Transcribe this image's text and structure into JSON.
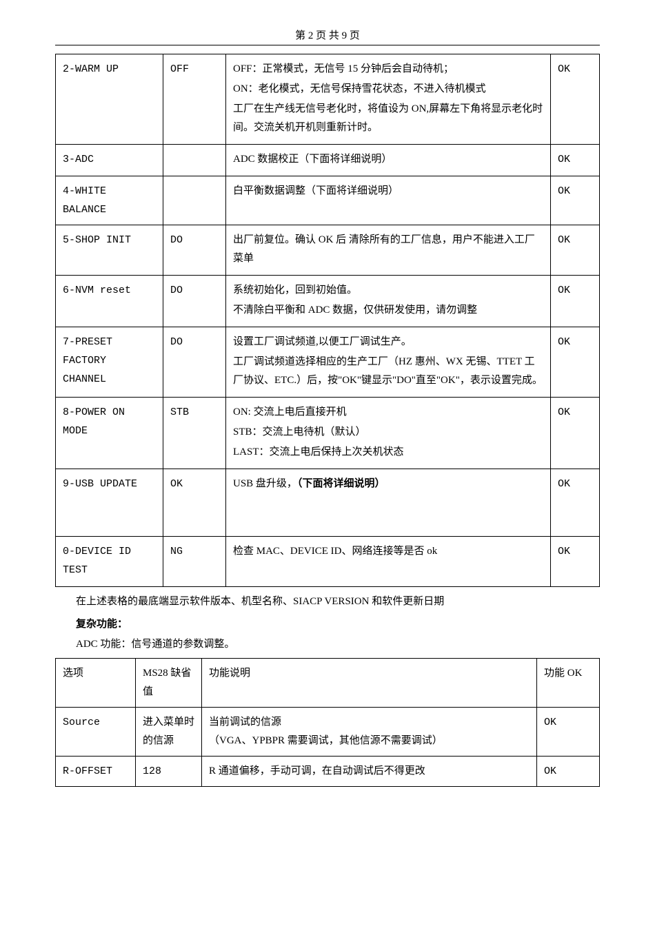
{
  "header": {
    "page_label": "第 2 页 共 9 页"
  },
  "table1": {
    "rows": [
      {
        "name": "2-WARM UP",
        "val": "OFF",
        "desc": [
          "OFF：正常模式，无信号 15 分钟后会自动待机；",
          "ON：老化模式，无信号保持雪花状态，不进入待机模式",
          "工厂在生产线无信号老化时，将值设为 ON,屏幕左下角将显示老化时间。交流关机开机则重新计时。"
        ],
        "ok": "OK"
      },
      {
        "name": "3-ADC",
        "val": "",
        "desc": [
          "ADC 数据校正（下面将详细说明）"
        ],
        "ok": "OK"
      },
      {
        "name": "4-WHITE BALANCE",
        "val": "",
        "desc": [
          "白平衡数据调整（下面将详细说明）"
        ],
        "ok": "OK"
      },
      {
        "name": "5-SHOP INIT",
        "val": "DO",
        "desc": [
          "出厂前复位。确认 OK 后 清除所有的工厂信息，用户不能进入工厂菜单"
        ],
        "ok": "OK"
      },
      {
        "name": "6-NVM reset",
        "val": "DO",
        "desc": [
          "系统初始化，回到初始值。",
          "不清除白平衡和 ADC 数据，仅供研发使用，请勿调整"
        ],
        "ok": "OK"
      },
      {
        "name": "7-PRESET FACTORY CHANNEL",
        "val": "DO",
        "desc": [
          "设置工厂调试频道,以便工厂调试生产。",
          "工厂调试频道选择相应的生产工厂（HZ 惠州、WX 无锡、TTET 工厂协议、ETC.）后，按\"OK\"键显示\"DO\"直至\"OK\"，表示设置完成。"
        ],
        "ok": "OK"
      },
      {
        "name": "8-POWER ON MODE",
        "val": "STB",
        "desc": [
          "ON:  交流上电后直接开机",
          "STB：交流上电待机（默认）",
          "LAST：交流上电后保持上次关机状态"
        ],
        "ok": "OK"
      },
      {
        "name": "9-USB UPDATE",
        "val": "OK",
        "desc_html": "usb_update",
        "ok": "OK",
        "extra_height": true
      },
      {
        "name": "0-DEVICE ID TEST",
        "val": "NG",
        "desc": [
          "检查 MAC、DEVICE ID、网络连接等是否 ok"
        ],
        "ok": "OK",
        "extra_height": true
      }
    ]
  },
  "usb_update": {
    "prefix": "USB 盘升级，",
    "bold": "（下面将详细说明）"
  },
  "middle": {
    "para1": "在上述表格的最底端显示软件版本、机型名称、SIACP VERSION 和软件更新日期",
    "section_title": "复杂功能：",
    "para2": "ADC 功能：信号通道的参数调整。"
  },
  "table2": {
    "header": {
      "c1": "选项",
      "c2": "MS28 缺省值",
      "c3": "功能说明",
      "c4": "功能 OK"
    },
    "rows": [
      {
        "c1": "Source",
        "c2": "进入菜单时的信源",
        "c3a": "当前调试的信源",
        "c3b": "（VGA、YPBPR 需要调试，其他信源不需要调试）",
        "c4": "OK"
      },
      {
        "c1": "R-OFFSET",
        "c2": "128",
        "c3": "R 通道偏移，手动可调，在自动调试后不得更改",
        "c4": "OK"
      }
    ]
  }
}
